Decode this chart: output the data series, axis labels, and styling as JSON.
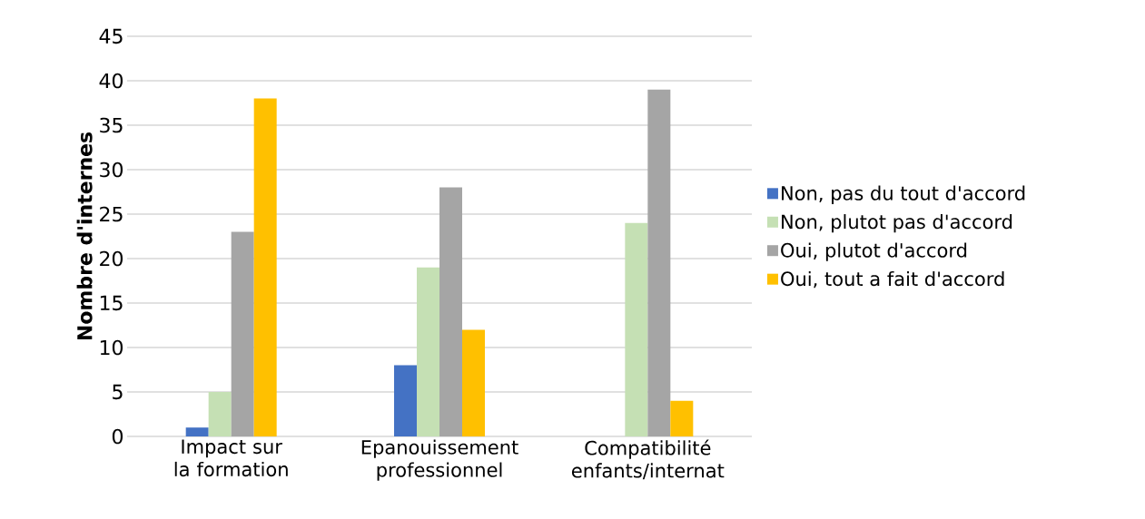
{
  "chart_data": {
    "type": "bar",
    "ylabel": "Nombre d'internes",
    "categories": [
      "Impact sur la formation",
      "Epanouissement professionnel",
      "Compatibilité enfants/internat"
    ],
    "series": [
      {
        "name": "Non, pas du tout d'accord",
        "color": "#4472c4",
        "values": [
          1,
          8,
          0
        ]
      },
      {
        "name": "Non, plutot pas d'accord",
        "color": "#c5e0b4",
        "values": [
          5,
          19,
          24
        ]
      },
      {
        "name": "Oui, plutot d'accord",
        "color": "#a5a5a5",
        "values": [
          23,
          28,
          39
        ]
      },
      {
        "name": "Oui, tout a fait d'accord",
        "color": "#ffc000",
        "values": [
          38,
          12,
          4
        ]
      }
    ],
    "ylim": [
      0,
      45
    ],
    "yticks": [
      0,
      5,
      10,
      15,
      20,
      25,
      30,
      35,
      40,
      45
    ],
    "grid": "y",
    "legend": "right"
  }
}
